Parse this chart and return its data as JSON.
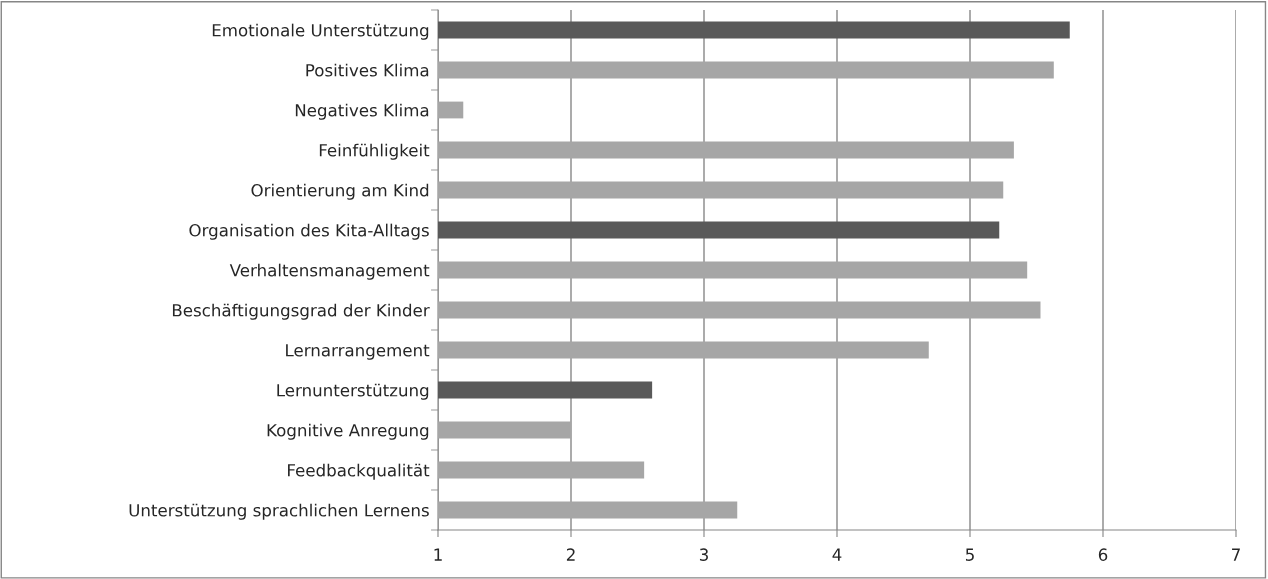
{
  "chart_data": {
    "type": "bar",
    "orientation": "horizontal",
    "categories": [
      "Emotionale Unterstützung",
      "Positives Klima",
      "Negatives Klima",
      "Feinfühligkeit",
      "Orientierung am Kind",
      "Organisation des Kita-Alltags",
      "Verhaltensmanagement",
      "Beschäftigungsgrad der Kinder",
      "Lernarrangement",
      "Lernunterstützung",
      "Kognitive Anregung",
      "Feedbackqualität",
      "Unterstützung sprachlichen Lernens"
    ],
    "values": [
      5.75,
      5.63,
      1.19,
      5.33,
      5.25,
      5.22,
      5.43,
      5.53,
      4.69,
      2.61,
      2.0,
      2.55,
      3.25
    ],
    "colors": [
      "#595959",
      "#a6a6a6",
      "#a6a6a6",
      "#a6a6a6",
      "#a6a6a6",
      "#595959",
      "#a6a6a6",
      "#a6a6a6",
      "#a6a6a6",
      "#595959",
      "#a6a6a6",
      "#a6a6a6",
      "#a6a6a6"
    ],
    "xlim": [
      1,
      7
    ],
    "xticks": [
      1,
      2,
      3,
      4,
      5,
      6,
      7
    ],
    "grid": "x"
  }
}
